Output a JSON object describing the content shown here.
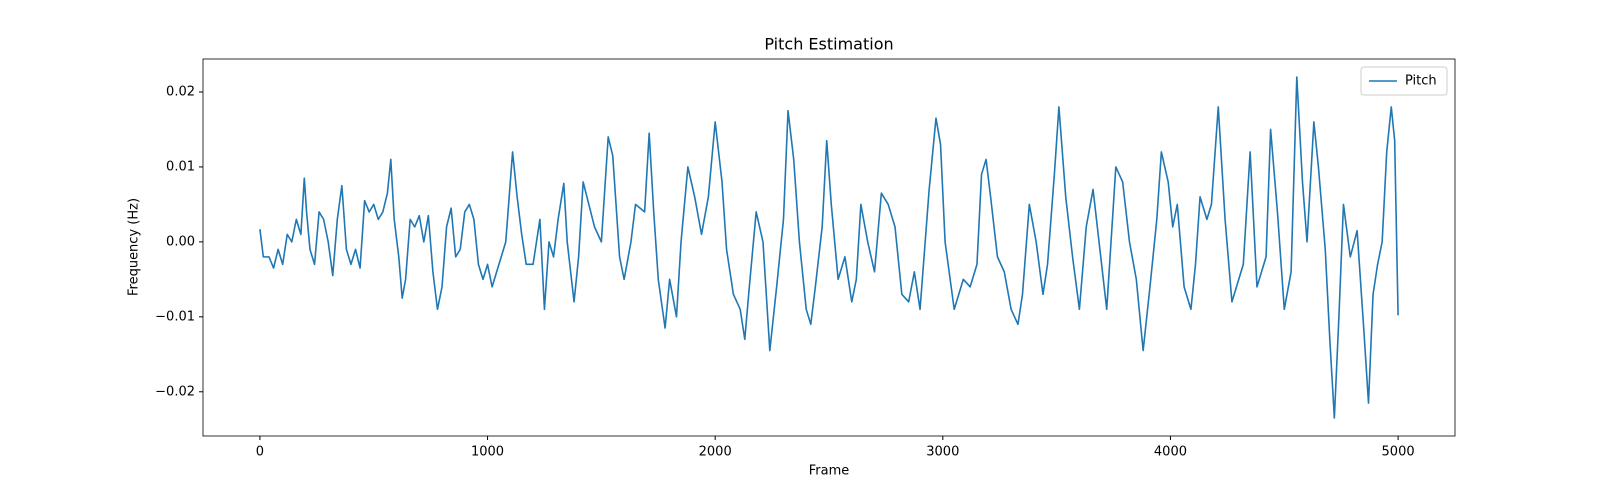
{
  "chart_data": {
    "type": "line",
    "title": "Pitch Estimation",
    "xlabel": "Frame",
    "ylabel": "Frequency (Hz)",
    "x": [
      0,
      15,
      40,
      60,
      80,
      100,
      120,
      140,
      160,
      180,
      195,
      205,
      220,
      240,
      260,
      280,
      300,
      320,
      340,
      360,
      380,
      400,
      420,
      440,
      460,
      480,
      500,
      520,
      540,
      560,
      575,
      590,
      610,
      625,
      640,
      660,
      680,
      700,
      720,
      740,
      760,
      780,
      800,
      820,
      840,
      860,
      880,
      900,
      920,
      940,
      960,
      980,
      1000,
      1020,
      1050,
      1080,
      1110,
      1130,
      1150,
      1170,
      1200,
      1230,
      1250,
      1270,
      1290,
      1310,
      1335,
      1350,
      1380,
      1400,
      1420,
      1445,
      1470,
      1500,
      1530,
      1550,
      1580,
      1600,
      1630,
      1650,
      1690,
      1710,
      1730,
      1750,
      1780,
      1800,
      1830,
      1850,
      1880,
      1910,
      1940,
      1970,
      2000,
      2030,
      2050,
      2080,
      2110,
      2130,
      2150,
      2180,
      2210,
      2240,
      2270,
      2300,
      2320,
      2345,
      2370,
      2400,
      2420,
      2440,
      2470,
      2490,
      2510,
      2540,
      2570,
      2600,
      2620,
      2640,
      2670,
      2700,
      2730,
      2760,
      2790,
      2820,
      2850,
      2875,
      2900,
      2940,
      2970,
      2990,
      3010,
      3050,
      3090,
      3120,
      3150,
      3170,
      3190,
      3210,
      3240,
      3270,
      3300,
      3330,
      3350,
      3380,
      3410,
      3440,
      3460,
      3490,
      3510,
      3540,
      3570,
      3600,
      3630,
      3660,
      3690,
      3720,
      3760,
      3790,
      3820,
      3850,
      3880,
      3910,
      3940,
      3960,
      3990,
      4010,
      4030,
      4060,
      4090,
      4110,
      4130,
      4160,
      4180,
      4210,
      4240,
      4270,
      4300,
      4320,
      4350,
      4380,
      4420,
      4440,
      4470,
      4500,
      4530,
      4555,
      4580,
      4600,
      4630,
      4650,
      4680,
      4700,
      4720,
      4740,
      4760,
      4790,
      4820,
      4850,
      4870,
      4890,
      4910,
      4930,
      4950,
      4970,
      4985,
      5000
    ],
    "series": [
      {
        "name": "Pitch",
        "color": "#1f77b4",
        "values": [
          0.0017,
          -0.002,
          -0.002,
          -0.0035,
          -0.001,
          -0.003,
          0.001,
          0.0,
          0.003,
          0.001,
          0.0085,
          0.004,
          -0.001,
          -0.003,
          0.004,
          0.003,
          0.0,
          -0.0045,
          0.003,
          0.0075,
          -0.001,
          -0.003,
          -0.001,
          -0.0035,
          0.0055,
          0.004,
          0.005,
          0.003,
          0.004,
          0.0065,
          0.011,
          0.003,
          -0.002,
          -0.0075,
          -0.005,
          0.003,
          0.002,
          0.0035,
          0.0,
          0.0035,
          -0.004,
          -0.009,
          -0.006,
          0.002,
          0.0045,
          -0.002,
          -0.001,
          0.004,
          0.005,
          0.003,
          -0.003,
          -0.005,
          -0.003,
          -0.006,
          -0.003,
          0.0,
          0.012,
          0.006,
          0.001,
          -0.003,
          -0.003,
          0.003,
          -0.009,
          0.0,
          -0.002,
          0.003,
          0.0078,
          0.0,
          -0.008,
          -0.002,
          0.008,
          0.005,
          0.002,
          0.0,
          0.014,
          0.0115,
          -0.002,
          -0.005,
          0.0,
          0.005,
          0.004,
          0.0145,
          0.004,
          -0.005,
          -0.0115,
          -0.005,
          -0.01,
          0.0,
          0.01,
          0.006,
          0.001,
          0.006,
          0.016,
          0.008,
          -0.001,
          -0.007,
          -0.009,
          -0.013,
          -0.006,
          0.004,
          0.0,
          -0.0145,
          -0.006,
          0.003,
          0.0175,
          0.011,
          0.0,
          -0.009,
          -0.011,
          -0.006,
          0.002,
          0.0135,
          0.005,
          -0.005,
          -0.002,
          -0.008,
          -0.005,
          0.005,
          0.0,
          -0.004,
          0.0065,
          0.005,
          0.002,
          -0.007,
          -0.008,
          -0.004,
          -0.009,
          0.007,
          0.0165,
          0.013,
          0.0,
          -0.009,
          -0.005,
          -0.006,
          -0.003,
          0.009,
          0.011,
          0.006,
          -0.002,
          -0.004,
          -0.009,
          -0.011,
          -0.007,
          0.005,
          0.0,
          -0.007,
          -0.003,
          0.009,
          0.018,
          0.006,
          -0.002,
          -0.009,
          0.002,
          0.007,
          -0.001,
          -0.009,
          0.01,
          0.008,
          0.0,
          -0.005,
          -0.0145,
          -0.006,
          0.003,
          0.012,
          0.008,
          0.002,
          0.005,
          -0.006,
          -0.009,
          -0.003,
          0.006,
          0.003,
          0.005,
          0.018,
          0.003,
          -0.008,
          -0.005,
          -0.003,
          0.012,
          -0.006,
          -0.002,
          0.015,
          0.004,
          -0.009,
          -0.004,
          0.022,
          0.008,
          0.0,
          0.016,
          0.01,
          -0.001,
          -0.013,
          -0.0235,
          -0.01,
          0.005,
          -0.002,
          0.0015,
          -0.012,
          -0.0215,
          -0.007,
          -0.003,
          0.0,
          0.012,
          0.018,
          0.0135,
          -0.0098
        ]
      }
    ],
    "xlim": [
      -250,
      5250
    ],
    "xticks": [
      0,
      1000,
      2000,
      3000,
      4000,
      5000
    ],
    "ylim": [
      -0.0259,
      0.0244
    ],
    "yticks": [
      {
        "value": -0.02,
        "label": "−0.02"
      },
      {
        "value": -0.01,
        "label": "−0.01"
      },
      {
        "value": 0,
        "label": "0.00"
      },
      {
        "value": 0.01,
        "label": "0.01"
      },
      {
        "value": 0.02,
        "label": "0.02"
      }
    ],
    "legend": "upper right"
  }
}
